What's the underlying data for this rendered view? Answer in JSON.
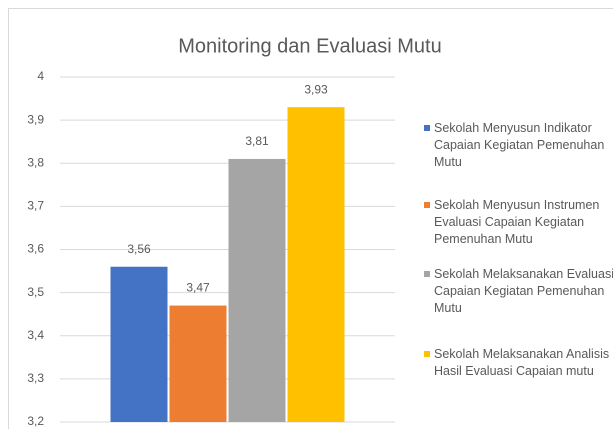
{
  "chart_data": {
    "type": "bar",
    "title": "Monitoring dan Evaluasi Mutu",
    "categories": [
      null
    ],
    "series": [
      {
        "name": "Sekolah Menyusun Indikator Capaian Kegiatan Pemenuhan Mutu",
        "color": "#4472c4",
        "values": [
          3.56
        ],
        "value_labels": [
          "3,56"
        ]
      },
      {
        "name": "Sekolah Menyusun Instrumen Evaluasi Capaian Kegiatan Pemenuhan Mutu",
        "color": "#ed7d31",
        "values": [
          3.47
        ],
        "value_labels": [
          "3,47"
        ]
      },
      {
        "name": "Sekolah Melaksanakan Evaluasi Capaian Kegiatan Pemenuhan Mutu",
        "color": "#a5a5a5",
        "values": [
          3.81
        ],
        "value_labels": [
          "3,81"
        ]
      },
      {
        "name": "Sekolah Melaksanakan Analisis Hasil Evaluasi Capaian mutu",
        "color": "#ffc000",
        "values": [
          3.93
        ],
        "value_labels": [
          "3,93"
        ]
      }
    ],
    "ylim": [
      3.2,
      4
    ],
    "yticks": [
      {
        "value": 3.2,
        "label": "3,2"
      },
      {
        "value": 3.3,
        "label": "3,3"
      },
      {
        "value": 3.4,
        "label": "3,4"
      },
      {
        "value": 3.5,
        "label": "3,5"
      },
      {
        "value": 3.6,
        "label": "3,6"
      },
      {
        "value": 3.7,
        "label": "3,7"
      },
      {
        "value": 3.8,
        "label": "3,8"
      },
      {
        "value": 3.9,
        "label": "3,9"
      },
      4
    ],
    "grid": true,
    "legend": "right"
  }
}
